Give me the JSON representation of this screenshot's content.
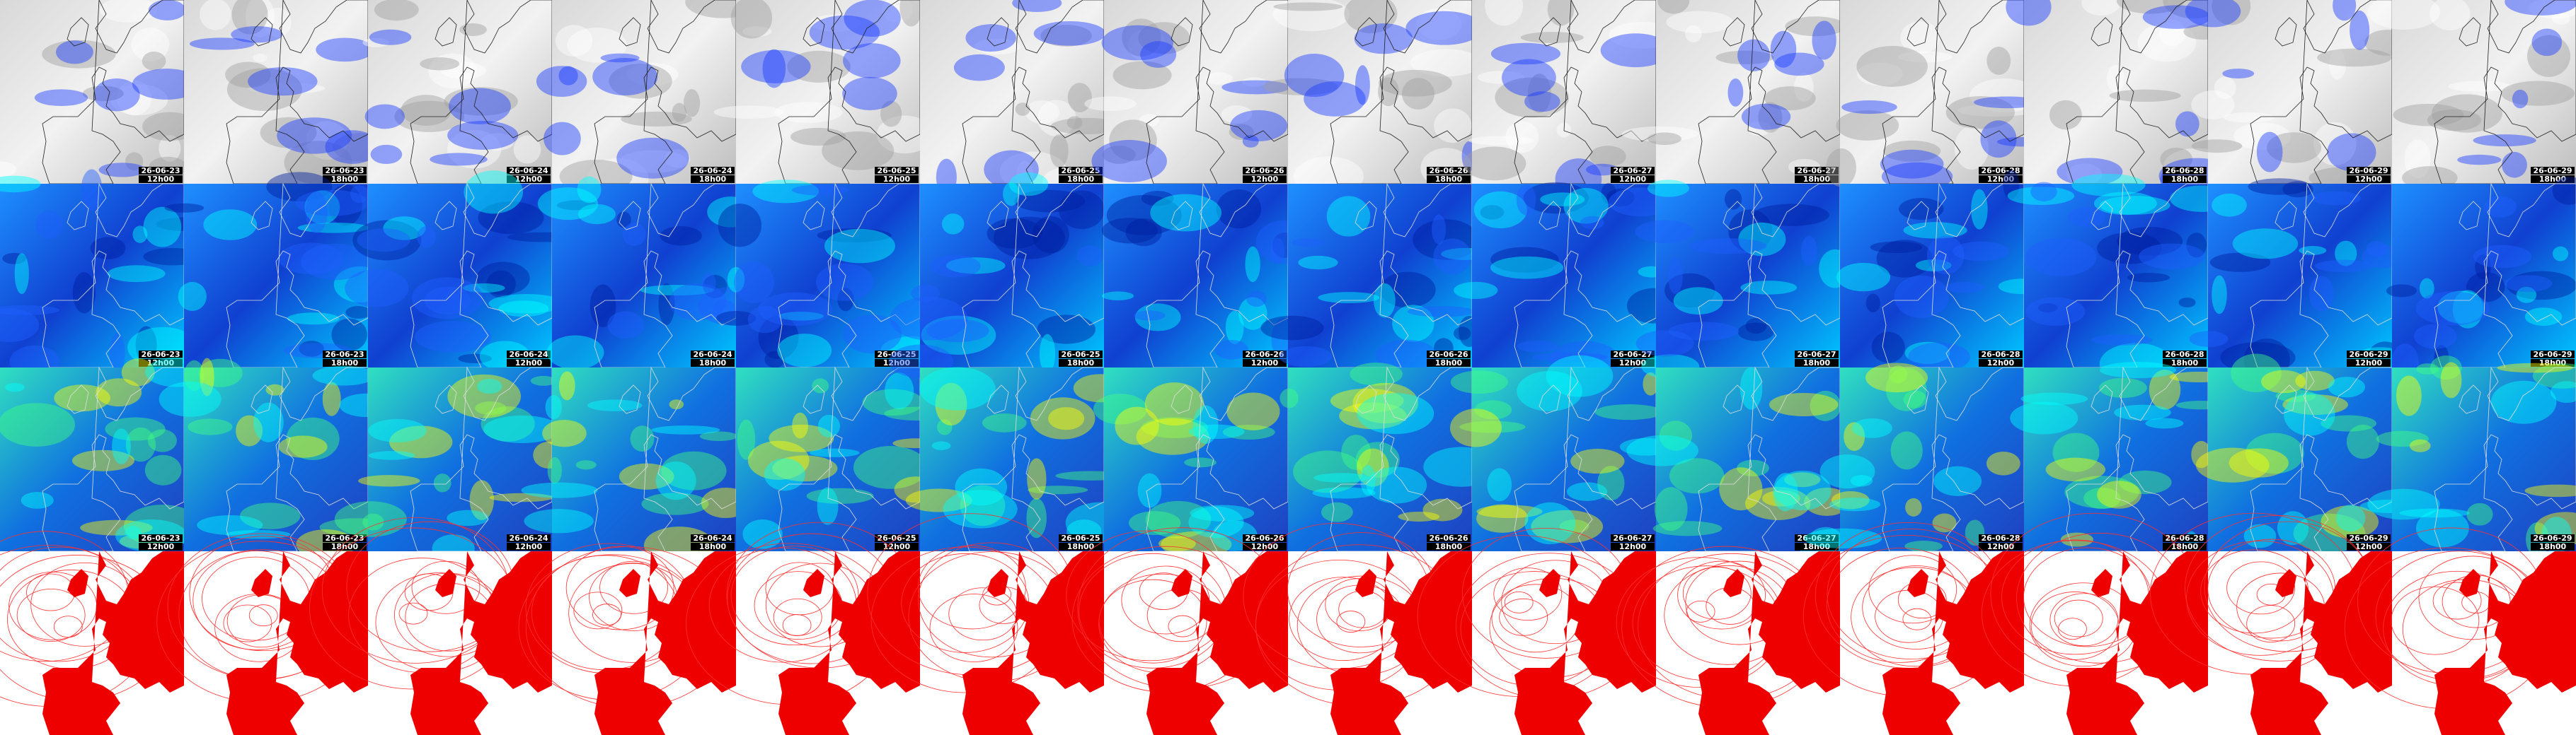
{
  "panels": [
    {
      "date": "26-06-23",
      "time": "12h00"
    },
    {
      "date": "26-06-23",
      "time": "18h00"
    },
    {
      "date": "26-06-24",
      "time": "12h00"
    },
    {
      "date": "26-06-24",
      "time": "18h00"
    },
    {
      "date": "26-06-25",
      "time": "12h00"
    },
    {
      "date": "26-06-25",
      "time": "18h00"
    },
    {
      "date": "26-06-26",
      "time": "12h00"
    },
    {
      "date": "26-06-26",
      "time": "18h00"
    },
    {
      "date": "26-06-27",
      "time": "12h00"
    },
    {
      "date": "26-06-27",
      "time": "18h00"
    },
    {
      "date": "26-06-28",
      "time": "12h00"
    },
    {
      "date": "26-06-28",
      "time": "18h00"
    },
    {
      "date": "26-06-29",
      "time": "12h00"
    },
    {
      "date": "26-06-29",
      "time": "18h00"
    }
  ]
}
